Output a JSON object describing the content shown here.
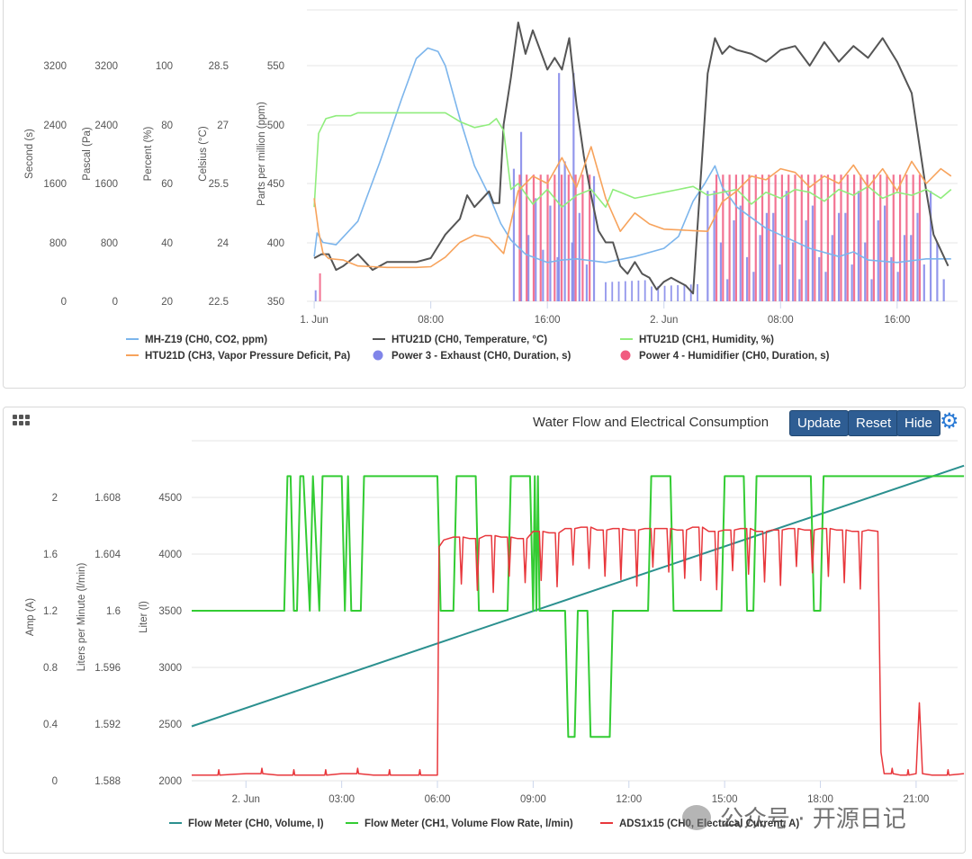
{
  "chart_data": [
    {
      "type": "line",
      "title": "",
      "x_ticks": [
        "1. Jun",
        "08:00",
        "16:00",
        "2. Jun",
        "08:00",
        "16:00"
      ],
      "y_axes": [
        {
          "label": "Second (s)",
          "ticks": [
            "0",
            "800",
            "1600",
            "2400",
            "3200"
          ]
        },
        {
          "label": "Pascal (Pa)",
          "ticks": [
            "0",
            "800",
            "1600",
            "2400",
            "3200"
          ]
        },
        {
          "label": "Percent (%)",
          "ticks": [
            "20",
            "40",
            "60",
            "80",
            "100"
          ]
        },
        {
          "label": "Celsius (°C)",
          "ticks": [
            "22.5",
            "24",
            "25.5",
            "27",
            "28.5"
          ]
        },
        {
          "label": "Parts per million (ppm)",
          "ticks": [
            "350",
            "400",
            "450",
            "500",
            "550"
          ]
        }
      ],
      "legend_position": "bottom",
      "series": [
        {
          "name": "MH-Z19 (CH0, CO2, ppm)",
          "color": "#7cb5ec",
          "unit_axis": "ppm",
          "x": [
            0,
            0.2,
            0.6,
            1.5,
            3,
            4.5,
            6,
            7,
            7.8,
            8.5,
            9,
            10,
            11,
            12,
            12.8,
            13.5,
            14.5,
            16,
            17,
            18,
            20,
            22,
            24,
            25,
            26,
            26.8,
            27.5,
            28,
            29,
            31,
            34,
            36,
            37,
            38,
            40,
            42,
            43,
            43.7
          ],
          "y": [
            388,
            408,
            400,
            398,
            418,
            468,
            522,
            556,
            565,
            562,
            550,
            505,
            465,
            440,
            416,
            402,
            390,
            383,
            385,
            386,
            383,
            388,
            395,
            405,
            435,
            450,
            465,
            447,
            430,
            412,
            395,
            388,
            392,
            385,
            383,
            386,
            386,
            386
          ]
        },
        {
          "name": "HTU21D (CH0, Temperature, °C)",
          "color": "#555555",
          "unit_axis": "celsius",
          "x": [
            0,
            0.5,
            1,
            1.5,
            2,
            3,
            4,
            4.5,
            5,
            5.5,
            6,
            7,
            8,
            9,
            10,
            10.5,
            11,
            12,
            12.3,
            12.7,
            13,
            13.5,
            14,
            14.5,
            15,
            15.5,
            16,
            16.5,
            17,
            17.5,
            18,
            18.5,
            19,
            19.5,
            20,
            20.5,
            21,
            21.5,
            22,
            22.5,
            23,
            23.5,
            24,
            24.5,
            25,
            25.5,
            26,
            27,
            27.5,
            28,
            28.5,
            29,
            30,
            31,
            32,
            33,
            34,
            35,
            36,
            37,
            38,
            39,
            40,
            41,
            42,
            42.5,
            43,
            43.5
          ],
          "y": [
            23.6,
            23.7,
            23.7,
            23.3,
            23.4,
            23.7,
            23.3,
            23.4,
            23.5,
            23.5,
            23.5,
            23.5,
            23.6,
            24.2,
            24.6,
            25.2,
            24.9,
            25.3,
            25.0,
            25.0,
            27.0,
            28.2,
            29.6,
            28.8,
            29.4,
            28.9,
            28.4,
            28.7,
            28.4,
            29.2,
            27.5,
            26.2,
            25.2,
            24.3,
            24.0,
            24.0,
            23.4,
            23.2,
            23.5,
            23.2,
            23.1,
            22.8,
            23.0,
            23.1,
            23.0,
            22.9,
            22.7,
            28.3,
            29.2,
            28.8,
            29.0,
            28.9,
            28.8,
            28.6,
            28.9,
            29.0,
            28.5,
            29.1,
            28.6,
            29.0,
            28.7,
            29.2,
            28.6,
            27.8,
            25.3,
            24.2,
            23.8,
            23.4
          ]
        },
        {
          "name": "HTU21D (CH1, Humidity, %)",
          "color": "#90ed7d",
          "unit_axis": "percent",
          "x": [
            0,
            0.3,
            0.8,
            1.5,
            2.5,
            3,
            4,
            5,
            6,
            7,
            8,
            9,
            10,
            11,
            12,
            12.5,
            13,
            13.5,
            14,
            15,
            16,
            17,
            18,
            19,
            20,
            20.5,
            21,
            22,
            23,
            24,
            25,
            26,
            27,
            28,
            29,
            30,
            31,
            32,
            33,
            34,
            35,
            36,
            37,
            38,
            39,
            40,
            41,
            42,
            43,
            43.7
          ],
          "y": [
            52,
            77,
            82,
            83,
            83,
            84,
            84,
            84,
            84,
            84,
            84,
            84,
            81,
            79,
            80,
            82,
            78,
            58,
            60,
            53,
            58,
            52,
            56,
            58,
            52,
            58,
            57,
            55,
            56,
            57,
            58,
            59,
            56,
            57,
            58,
            53,
            57,
            55,
            58,
            57,
            54,
            58,
            56,
            59,
            55,
            57,
            56,
            58,
            55,
            58
          ]
        },
        {
          "name": "HTU21D (CH3, Vapor Pressure Deficit, Pa)",
          "color": "#f7a35c",
          "unit_axis": "pascal",
          "x": [
            0,
            0.3,
            0.6,
            1,
            2,
            3,
            4,
            5,
            6,
            7,
            8,
            9,
            10,
            11,
            12,
            13,
            14,
            15,
            16,
            17,
            18,
            19,
            20,
            21,
            22,
            23,
            24,
            25,
            26,
            27,
            28,
            29,
            30,
            31,
            32,
            33,
            34,
            35,
            36,
            37,
            38,
            39,
            40,
            41,
            42,
            43,
            43.7
          ],
          "y": [
            1400,
            950,
            660,
            580,
            560,
            480,
            470,
            460,
            460,
            460,
            470,
            600,
            800,
            900,
            860,
            650,
            1500,
            1700,
            1600,
            1950,
            1550,
            2100,
            1400,
            950,
            1200,
            1050,
            980,
            970,
            960,
            950,
            1350,
            1500,
            1700,
            1650,
            1800,
            1750,
            1550,
            1700,
            1600,
            1850,
            1550,
            1800,
            1500,
            1900,
            1600,
            1800,
            1700
          ]
        },
        {
          "name": "Power 3 - Exhaust (CH0, Duration, s)",
          "color": "#8085e9",
          "unit_axis": "second",
          "style": "bars"
        },
        {
          "name": "Power 4 - Humidifier (CH0, Duration, s)",
          "color": "#f15c80",
          "unit_axis": "second",
          "style": "bars"
        }
      ]
    },
    {
      "type": "line",
      "title": "Water Flow and Electrical Consumption",
      "x_ticks": [
        "2. Jun",
        "03:00",
        "06:00",
        "09:00",
        "12:00",
        "15:00",
        "18:00",
        "21:00"
      ],
      "y_axes": [
        {
          "label": "Amp (A)",
          "ticks": [
            "0",
            "0.4",
            "0.8",
            "1.2",
            "1.6",
            "2"
          ]
        },
        {
          "label": "Liters per Minute (l/min)",
          "ticks": [
            "1.588",
            "1.592",
            "1.596",
            "1.6",
            "1.604",
            "1.608"
          ]
        },
        {
          "label": "Liter (l)",
          "ticks": [
            "2000",
            "2500",
            "3000",
            "3500",
            "4000",
            "4500"
          ]
        }
      ],
      "legend_position": "bottom",
      "series": [
        {
          "name": "Flow Meter (CH0, Volume, l)",
          "color": "#2b908f",
          "unit_axis": "liter",
          "x": [
            -1.7,
            22.5
          ],
          "y": [
            2480,
            4780
          ]
        },
        {
          "name": "Flow Meter (CH1, Volume Flow Rate, l/min)",
          "color": "#33cc33",
          "unit_axis": "lpm",
          "x": [
            -1.7,
            1.2,
            1.3,
            1.4,
            1.5,
            1.6,
            1.7,
            1.8,
            2.0,
            2.1,
            2.3,
            2.4,
            3.0,
            3.1,
            3.2,
            3.3,
            3.6,
            3.7,
            3.9,
            4.0,
            6.0,
            6.1,
            6.5,
            6.6,
            7.2,
            7.3,
            8.2,
            8.3,
            8.9,
            9.0,
            9.05,
            9.1,
            9.15,
            9.2,
            10.0,
            10.1,
            10.3,
            10.4,
            10.7,
            10.8,
            11.4,
            11.5,
            11.7,
            11.8,
            12.6,
            12.7,
            13.3,
            13.4,
            14.9,
            15.0,
            15.6,
            15.7,
            15.9,
            16.0,
            17.7,
            17.8,
            18.0,
            18.1,
            22.5
          ],
          "y": [
            1.6,
            1.6,
            1.6095,
            1.6095,
            1.6,
            1.6,
            1.6095,
            1.6095,
            1.6,
            1.6095,
            1.6,
            1.6095,
            1.6095,
            1.6,
            1.6095,
            1.6,
            1.6,
            1.6095,
            1.6095,
            1.6095,
            1.6095,
            1.6,
            1.6,
            1.6095,
            1.6095,
            1.6,
            1.6,
            1.6095,
            1.6095,
            1.6,
            1.6095,
            1.6,
            1.6095,
            1.6,
            1.6,
            1.5911,
            1.5911,
            1.6,
            1.6,
            1.5911,
            1.5911,
            1.6,
            1.6,
            1.6,
            1.6,
            1.6095,
            1.6095,
            1.6,
            1.6,
            1.6095,
            1.6095,
            1.6,
            1.6,
            1.6095,
            1.6095,
            1.6,
            1.6,
            1.6095,
            1.6095
          ]
        },
        {
          "name": "ADS1x15 (CH0, Electrical Current, A)",
          "color": "#e8373c",
          "unit_axis": "amp",
          "x": [
            -1.7,
            0,
            1,
            2,
            3,
            4,
            5,
            5.9,
            6.0,
            6.05,
            6.2,
            6.5,
            7,
            7.5,
            8,
            8.5,
            9,
            9.5,
            10,
            10.5,
            11,
            11.5,
            12,
            12.5,
            13,
            13.5,
            14,
            14.5,
            15,
            15.5,
            16,
            16.5,
            17,
            17.5,
            18,
            18.5,
            19,
            19.5,
            19.8,
            19.9,
            20.0,
            20.5,
            21.0,
            21.1,
            21.2,
            21.5,
            22.5
          ],
          "y": [
            0.04,
            0.05,
            0.04,
            0.04,
            0.05,
            0.04,
            0.04,
            0.04,
            0.04,
            1.65,
            1.7,
            1.72,
            1.71,
            1.73,
            1.72,
            1.71,
            1.76,
            1.75,
            1.78,
            1.79,
            1.77,
            1.78,
            1.77,
            1.78,
            1.78,
            1.77,
            1.79,
            1.76,
            1.77,
            1.78,
            1.76,
            1.77,
            1.78,
            1.77,
            1.78,
            1.77,
            1.76,
            1.77,
            1.76,
            0.2,
            0.05,
            0.04,
            0.05,
            0.55,
            0.05,
            0.04,
            0.05
          ]
        }
      ]
    }
  ],
  "ui": {
    "panel2_title": "Water Flow and Electrical Consumption",
    "buttons": {
      "update": "Update",
      "reset": "Reset",
      "hide": "Hide"
    },
    "icons": {
      "menu": "grid-menu-icon",
      "settings": "gear-icon"
    },
    "watermark": "公众号 · 开源日记"
  }
}
